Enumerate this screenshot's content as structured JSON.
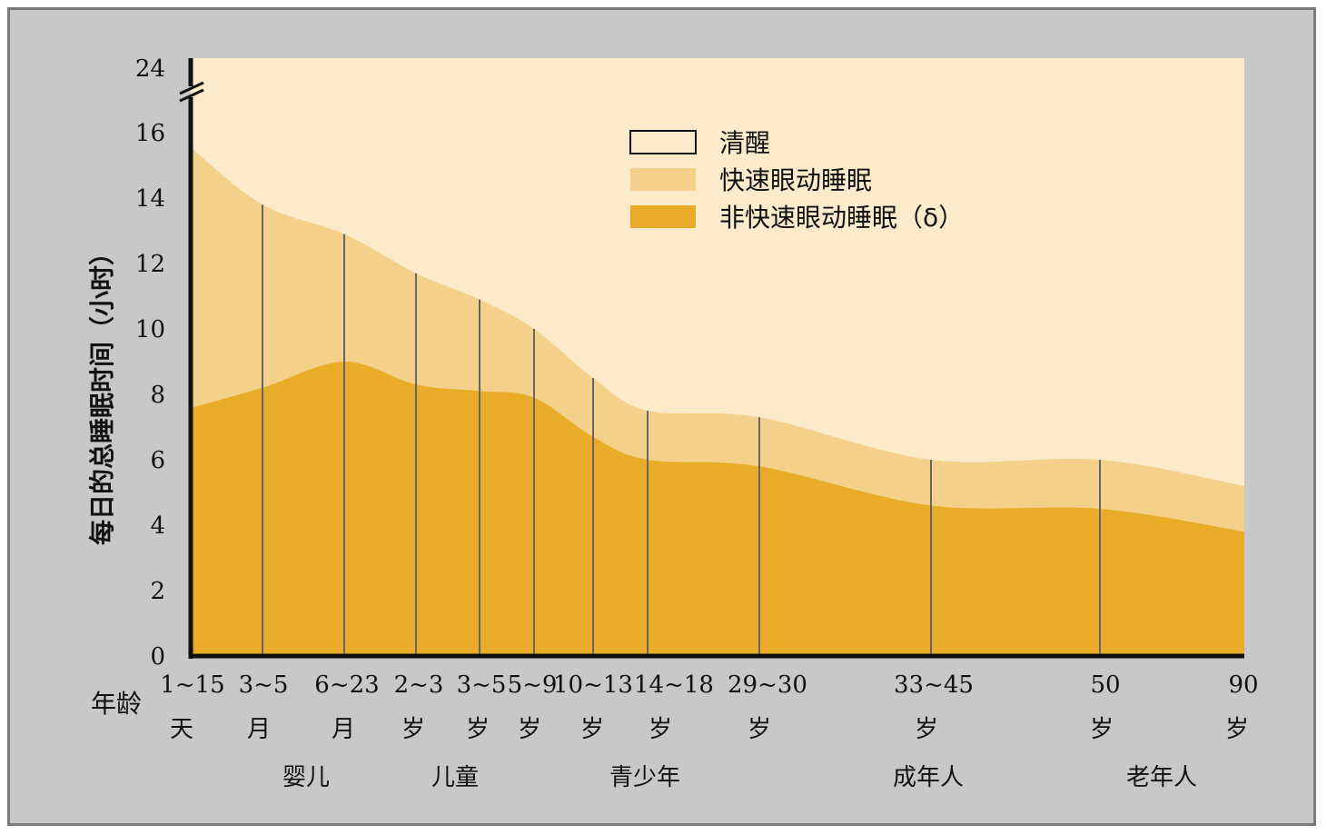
{
  "chart_data": {
    "type": "area",
    "ylabel": "每日的总睡眠时间（小时）",
    "x_axis_label": "年龄",
    "y_ticks": [
      {
        "label": "0",
        "value": 0
      },
      {
        "label": "2",
        "value": 2
      },
      {
        "label": "4",
        "value": 4
      },
      {
        "label": "6",
        "value": 6
      },
      {
        "label": "8",
        "value": 8
      },
      {
        "label": "10",
        "value": 10
      },
      {
        "label": "12",
        "value": 12
      },
      {
        "label": "14",
        "value": 14
      },
      {
        "label": "16",
        "value": 16
      },
      {
        "label": "24",
        "value": 24
      }
    ],
    "axis_break": {
      "between": [
        16,
        24
      ]
    },
    "ylim": [
      0,
      24
    ],
    "categories": [
      {
        "age": "1~15",
        "unit": "天"
      },
      {
        "age": "3~5",
        "unit": "月"
      },
      {
        "age": "6~23",
        "unit": "月"
      },
      {
        "age": "2~3",
        "unit": "岁"
      },
      {
        "age": "3~5",
        "unit": "岁"
      },
      {
        "age": "5~9",
        "unit": "岁"
      },
      {
        "age": "10~13",
        "unit": "岁"
      },
      {
        "age": "14~18",
        "unit": "岁"
      },
      {
        "age": "29~30",
        "unit": "岁"
      },
      {
        "age": "33~45",
        "unit": "岁"
      },
      {
        "age": "50",
        "unit": "岁"
      },
      {
        "age": "90",
        "unit": "岁"
      }
    ],
    "groups": [
      {
        "label": "婴儿",
        "categories": [
          0,
          2
        ]
      },
      {
        "label": "儿童",
        "categories": [
          3,
          5
        ]
      },
      {
        "label": "青少年",
        "categories": [
          6,
          8
        ]
      },
      {
        "label": "成年人",
        "categories": [
          9,
          9
        ]
      },
      {
        "label": "老年人",
        "categories": [
          10,
          11
        ]
      }
    ],
    "series": [
      {
        "name": "清醒",
        "color": "#fbebcb",
        "values": [
          24,
          24,
          24,
          24,
          24,
          24,
          24,
          24,
          24,
          24,
          24,
          24
        ]
      },
      {
        "name": "快速眼动睡眠",
        "color": "#f3d18b",
        "values": [
          15.5,
          13.8,
          12.9,
          11.7,
          10.9,
          10.0,
          8.5,
          7.5,
          7.3,
          6.0,
          6.0,
          5.2
        ]
      },
      {
        "name": "非快速眼动睡眠（δ）",
        "color": "#e8ac28",
        "values": [
          7.6,
          8.2,
          9.0,
          8.3,
          8.1,
          7.9,
          6.7,
          6.0,
          5.8,
          4.6,
          4.5,
          3.8
        ]
      }
    ],
    "legend_position": "top-center"
  }
}
